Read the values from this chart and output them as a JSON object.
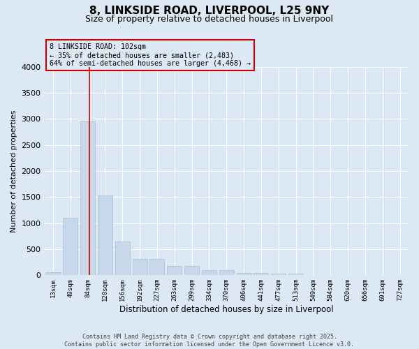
{
  "title_line1": "8, LINKSIDE ROAD, LIVERPOOL, L25 9NY",
  "title_line2": "Size of property relative to detached houses in Liverpool",
  "xlabel": "Distribution of detached houses by size in Liverpool",
  "ylabel": "Number of detached properties",
  "footer_line1": "Contains HM Land Registry data © Crown copyright and database right 2025.",
  "footer_line2": "Contains public sector information licensed under the Open Government Licence v3.0.",
  "annotation_line1": "8 LINKSIDE ROAD: 102sqm",
  "annotation_line2": "← 35% of detached houses are smaller (2,483)",
  "annotation_line3": "64% of semi-detached houses are larger (4,468) →",
  "categories": [
    "13sqm",
    "49sqm",
    "84sqm",
    "120sqm",
    "156sqm",
    "192sqm",
    "227sqm",
    "263sqm",
    "299sqm",
    "334sqm",
    "370sqm",
    "406sqm",
    "441sqm",
    "477sqm",
    "513sqm",
    "549sqm",
    "584sqm",
    "620sqm",
    "656sqm",
    "691sqm",
    "727sqm"
  ],
  "values": [
    60,
    1100,
    2960,
    1530,
    650,
    310,
    310,
    185,
    185,
    95,
    95,
    50,
    50,
    30,
    30,
    10,
    0,
    0,
    0,
    0,
    0
  ],
  "bar_color": "#c8d8eb",
  "bar_edge_color": "#a8c0d8",
  "vline_color": "#cc0000",
  "vline_position": 2.08,
  "ylim": [
    0,
    4000
  ],
  "yticks": [
    0,
    500,
    1000,
    1500,
    2000,
    2500,
    3000,
    3500,
    4000
  ],
  "bg_color": "#dce8f4",
  "grid_color": "#ffffff",
  "annotation_box_edgecolor": "#cc0000"
}
